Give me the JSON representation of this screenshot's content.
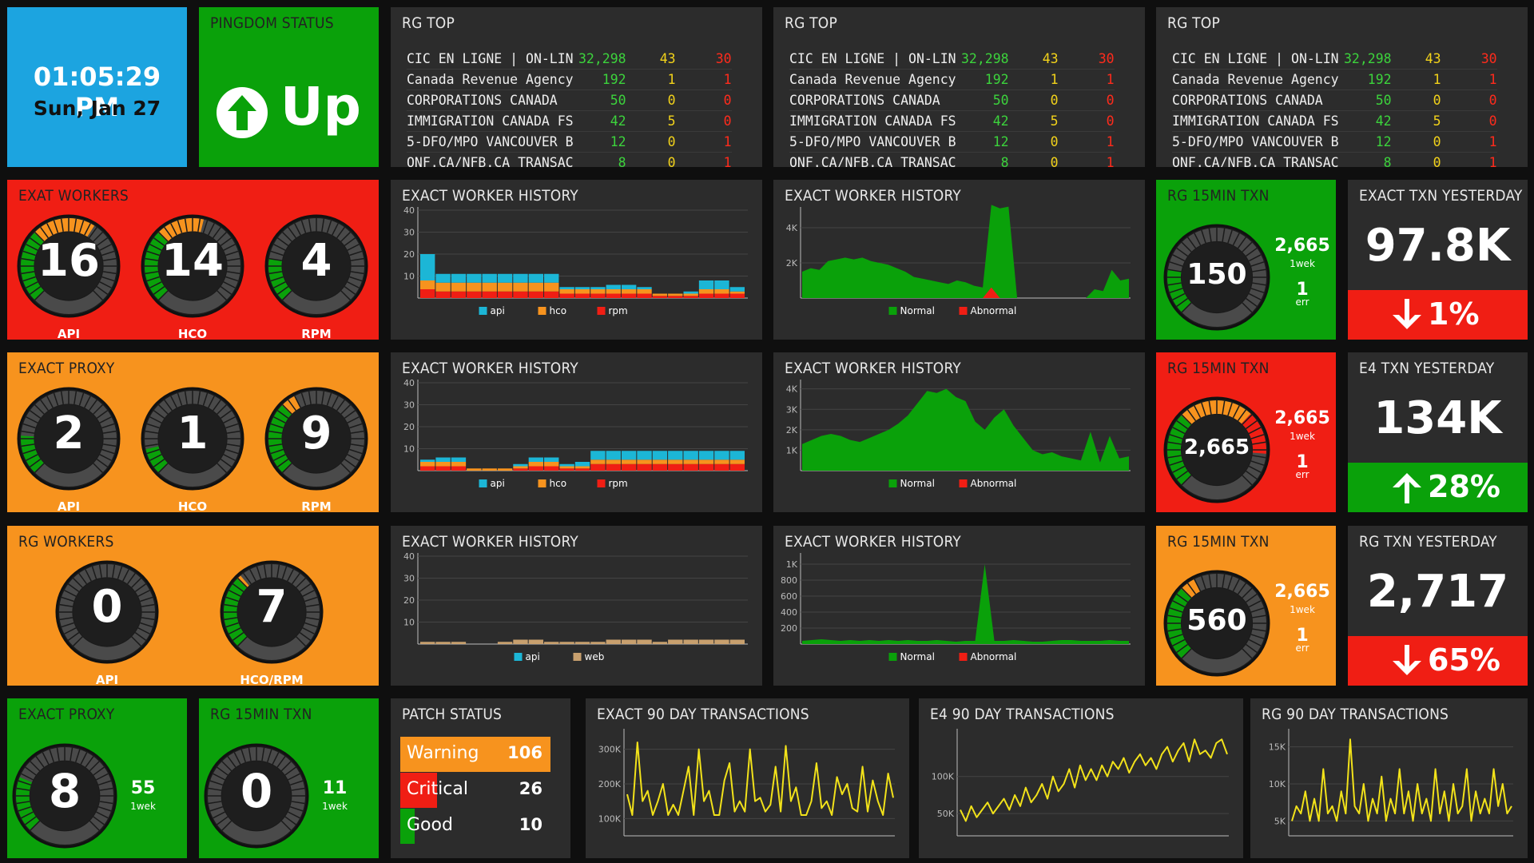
{
  "clock": {
    "time": "01:05:29 PM",
    "date": "Sun, Jan 27"
  },
  "pingdom": {
    "title": "PINGDOM STATUS",
    "status": "Up",
    "icon": "arrow-up-circle-icon"
  },
  "rg_top": {
    "title": "RG TOP",
    "rows": [
      {
        "name": "CIC EN LIGNE | ON-LIN",
        "a": "32,298",
        "b": "43",
        "c": "30"
      },
      {
        "name": "Canada Revenue Agency",
        "a": "192",
        "b": "1",
        "c": "1"
      },
      {
        "name": "CORPORATIONS CANADA",
        "a": "50",
        "b": "0",
        "c": "0"
      },
      {
        "name": "IMMIGRATION CANADA FS",
        "a": "42",
        "b": "5",
        "c": "0"
      },
      {
        "name": "5-DFO/MPO VANCOUVER B",
        "a": "12",
        "b": "0",
        "c": "1"
      },
      {
        "name": "ONF.CA/NFB.CA TRANSAC",
        "a": "8",
        "b": "0",
        "c": "1"
      }
    ]
  },
  "exat_workers": {
    "title": "EXAT WORKERS",
    "gauges": [
      {
        "value": "16",
        "label": "API",
        "level": 0.62
      },
      {
        "value": "14",
        "label": "HCO",
        "level": 0.55
      },
      {
        "value": "4",
        "label": "RPM",
        "level": 0.2
      }
    ]
  },
  "exact_proxy": {
    "title": "EXACT PROXY",
    "gauges": [
      {
        "value": "2",
        "label": "API",
        "level": 0.18
      },
      {
        "value": "1",
        "label": "HCO",
        "level": 0.12
      },
      {
        "value": "9",
        "label": "RPM",
        "level": 0.4
      }
    ]
  },
  "rg_workers": {
    "title": "RG WORKERS",
    "gauges": [
      {
        "value": "0",
        "label": "API",
        "level": 0
      },
      {
        "value": "7",
        "label": "HCO/RPM",
        "level": 0.35
      }
    ]
  },
  "exact_proxy2": {
    "title": "EXACT PROXY",
    "value": "8",
    "side": "55",
    "side_caption": "1wek",
    "level": 0.25
  },
  "rg15_small": {
    "title": "RG 15MIN TXN",
    "value": "0",
    "side": "11",
    "side_caption": "1wek",
    "level": 0
  },
  "rg15": [
    {
      "title": "RG 15MIN TXN",
      "value": "150",
      "wk": "2,665",
      "wk_caption": "1wek",
      "err": "1",
      "err_caption": "err",
      "level": 0.2
    },
    {
      "title": "RG 15MIN TXN",
      "value": "2,665",
      "wk": "2,665",
      "wk_caption": "1wek",
      "err": "1",
      "err_caption": "err",
      "level": 0.85
    },
    {
      "title": "RG 15MIN TXN",
      "value": "560",
      "wk": "2,665",
      "wk_caption": "1wek",
      "err": "1",
      "err_caption": "err",
      "level": 0.4
    }
  ],
  "yesterday": [
    {
      "title": "EXACT TXN YESTERDAY",
      "value": "97.8K",
      "delta": "1%",
      "direction": "down",
      "color": "#f01e14"
    },
    {
      "title": "E4 TXN YESTERDAY",
      "value": "134K",
      "delta": "28%",
      "direction": "up",
      "color": "#0aa10a"
    },
    {
      "title": "RG TXN YESTERDAY",
      "value": "2,717",
      "delta": "65%",
      "direction": "down",
      "color": "#f01e14"
    }
  ],
  "patch": {
    "title": "PATCH STATUS",
    "rows": [
      {
        "label": "Warning",
        "value": "106",
        "color": "#f7931e"
      },
      {
        "label": "Critical",
        "value": "26",
        "color": "#f01e14"
      },
      {
        "label": "Good",
        "value": "10",
        "color": "#0aa10a"
      }
    ]
  },
  "colors": {
    "green": "#0aa10a",
    "red": "#f01e14",
    "orange": "#f7931e",
    "blue": "#1ca4e0",
    "tile": "#2c2c2c",
    "line": "#f2e21a",
    "api": "#1cb6d6",
    "hco": "#f7931e",
    "rpm": "#f01e14",
    "web": "#c8a06e"
  },
  "chart_data": [
    {
      "type": "bar",
      "title": "EXACT WORKER HISTORY",
      "ylim": [
        0,
        40
      ],
      "yticks": [
        "10",
        "20",
        "30",
        "40"
      ],
      "series": [
        {
          "name": "api",
          "values": [
            12,
            4,
            4,
            4,
            4,
            4,
            4,
            4,
            4,
            1,
            1,
            1,
            2,
            2,
            1,
            0,
            0,
            1,
            4,
            4,
            2
          ]
        },
        {
          "name": "hco",
          "values": [
            4,
            4,
            4,
            4,
            4,
            4,
            4,
            4,
            4,
            2,
            2,
            2,
            2,
            2,
            2,
            1,
            1,
            1,
            2,
            2,
            1
          ]
        },
        {
          "name": "rpm",
          "values": [
            4,
            3,
            3,
            3,
            3,
            3,
            3,
            3,
            3,
            2,
            2,
            2,
            2,
            2,
            2,
            1,
            1,
            1,
            2,
            2,
            2
          ]
        }
      ]
    },
    {
      "type": "area",
      "title": "EXACT WORKER HISTORY",
      "ylim": [
        0,
        5000
      ],
      "yticks": [
        "2K",
        "4K"
      ],
      "series": [
        {
          "name": "Normal",
          "values": [
            1500,
            1700,
            1600,
            2100,
            2200,
            2300,
            2200,
            2300,
            2100,
            2000,
            1900,
            1700,
            1500,
            1200,
            1100,
            1000,
            900,
            800,
            1000,
            900,
            700,
            600,
            5300,
            5100,
            5200,
            0,
            0,
            0,
            0,
            0,
            0,
            0,
            0,
            0,
            500,
            400,
            1600,
            1000,
            1100
          ]
        },
        {
          "name": "Abnormal",
          "values": [
            0,
            0,
            0,
            0,
            0,
            0,
            0,
            0,
            0,
            0,
            0,
            0,
            0,
            0,
            0,
            0,
            0,
            0,
            0,
            0,
            0,
            0,
            600,
            0,
            0,
            0,
            0,
            0,
            0,
            0,
            0,
            0,
            0,
            0,
            0,
            0,
            0,
            0,
            0
          ]
        }
      ]
    },
    {
      "type": "bar",
      "title": "EXACT WORKER HISTORY",
      "ylim": [
        0,
        40
      ],
      "yticks": [
        "10",
        "20",
        "30",
        "40"
      ],
      "series": [
        {
          "name": "api",
          "values": [
            1,
            2,
            2,
            0,
            0,
            0,
            1,
            2,
            2,
            1,
            2,
            4,
            4,
            4,
            4,
            4,
            4,
            4,
            4,
            4,
            4
          ]
        },
        {
          "name": "hco",
          "values": [
            2,
            2,
            2,
            1,
            1,
            1,
            1,
            2,
            2,
            1,
            1,
            2,
            2,
            2,
            2,
            2,
            2,
            2,
            2,
            2,
            2
          ]
        },
        {
          "name": "rpm",
          "values": [
            2,
            2,
            2,
            0,
            0,
            0,
            1,
            2,
            2,
            1,
            1,
            3,
            3,
            3,
            3,
            3,
            3,
            3,
            3,
            3,
            3
          ]
        }
      ]
    },
    {
      "type": "area",
      "title": "EXACT WORKER HISTORY",
      "ylim": [
        0,
        4300
      ],
      "yticks": [
        "1K",
        "2K",
        "3K",
        "4K"
      ],
      "series": [
        {
          "name": "Normal",
          "values": [
            1300,
            1500,
            1700,
            1800,
            1700,
            1500,
            1400,
            1600,
            1800,
            2000,
            2300,
            2700,
            3300,
            3900,
            3800,
            4000,
            3600,
            3400,
            2400,
            2000,
            2600,
            3000,
            2200,
            1600,
            1000,
            800,
            900,
            700,
            600,
            500,
            1900,
            400,
            1700,
            600,
            700
          ]
        },
        {
          "name": "Abnormal",
          "values": [
            0,
            0,
            0,
            0,
            0,
            0,
            0,
            0,
            0,
            0,
            0,
            0,
            0,
            0,
            0,
            0,
            0,
            0,
            0,
            0,
            0,
            0,
            0,
            0,
            0,
            0,
            0,
            0,
            0,
            0,
            0,
            0,
            0,
            0,
            0
          ]
        }
      ]
    },
    {
      "type": "bar",
      "title": "EXACT WORKER HISTORY",
      "ylim": [
        0,
        40
      ],
      "yticks": [
        "10",
        "20",
        "30",
        "40"
      ],
      "series": [
        {
          "name": "api",
          "values": [
            0,
            0,
            0,
            0,
            0,
            0,
            0,
            0,
            0,
            0,
            0,
            0,
            0,
            0,
            0,
            0,
            0,
            0,
            0,
            0,
            0
          ]
        },
        {
          "name": "web",
          "values": [
            1,
            1,
            1,
            0,
            0,
            1,
            2,
            2,
            1,
            1,
            1,
            1,
            2,
            2,
            2,
            1,
            2,
            2,
            2,
            2,
            2
          ]
        }
      ]
    },
    {
      "type": "area",
      "title": "EXACT WORKER HISTORY",
      "ylim": [
        0,
        1100
      ],
      "yticks": [
        "200",
        "400",
        "600",
        "800",
        "1K"
      ],
      "series": [
        {
          "name": "Normal",
          "values": [
            40,
            50,
            60,
            50,
            40,
            50,
            40,
            50,
            40,
            50,
            40,
            50,
            40,
            40,
            50,
            40,
            30,
            40,
            40,
            1000,
            40,
            40,
            50,
            40,
            30,
            30,
            40,
            50,
            50,
            40,
            40,
            40,
            50,
            40,
            40
          ]
        },
        {
          "name": "Abnormal",
          "values": [
            0,
            0,
            0,
            0,
            0,
            0,
            0,
            0,
            0,
            0,
            0,
            0,
            0,
            0,
            0,
            0,
            0,
            0,
            0,
            0,
            0,
            0,
            0,
            0,
            0,
            0,
            0,
            0,
            0,
            0,
            0,
            0,
            0,
            0,
            0
          ]
        }
      ]
    },
    {
      "type": "line",
      "title": "EXACT 90 DAY TRANSACTIONS",
      "ylim": [
        50000,
        350000
      ],
      "yticks": [
        "100K",
        "200K",
        "300K"
      ],
      "series": [
        {
          "name": "",
          "values": [
            170000,
            110000,
            320000,
            150000,
            180000,
            110000,
            150000,
            200000,
            110000,
            140000,
            110000,
            180000,
            250000,
            110000,
            300000,
            150000,
            180000,
            110000,
            110000,
            210000,
            260000,
            120000,
            150000,
            120000,
            300000,
            150000,
            160000,
            120000,
            140000,
            250000,
            120000,
            310000,
            150000,
            190000,
            110000,
            110000,
            150000,
            260000,
            130000,
            150000,
            110000,
            220000,
            170000,
            200000,
            130000,
            120000,
            250000,
            120000,
            210000,
            150000,
            110000,
            230000,
            160000
          ]
        }
      ]
    },
    {
      "type": "line",
      "title": "E4 90 DAY TRANSACTIONS",
      "ylim": [
        20000,
        160000
      ],
      "yticks": [
        "50K",
        "100K"
      ],
      "series": [
        {
          "name": "",
          "values": [
            55000,
            40000,
            60000,
            45000,
            55000,
            65000,
            50000,
            60000,
            70000,
            55000,
            75000,
            60000,
            85000,
            65000,
            75000,
            90000,
            70000,
            100000,
            80000,
            90000,
            110000,
            85000,
            115000,
            95000,
            110000,
            95000,
            115000,
            100000,
            120000,
            110000,
            125000,
            105000,
            120000,
            130000,
            115000,
            125000,
            110000,
            130000,
            140000,
            120000,
            135000,
            145000,
            120000,
            150000,
            130000,
            135000,
            125000,
            145000,
            150000,
            130000
          ]
        }
      ]
    },
    {
      "type": "line",
      "title": "RG 90 DAY TRANSACTIONS",
      "ylim": [
        3000,
        17000
      ],
      "yticks": [
        "5K",
        "10K",
        "15K"
      ],
      "series": [
        {
          "name": "",
          "values": [
            5000,
            7000,
            6000,
            9000,
            5000,
            8000,
            5000,
            12000,
            6000,
            7000,
            5000,
            9000,
            6000,
            16000,
            7000,
            6000,
            10000,
            5000,
            8000,
            6000,
            11000,
            5000,
            8000,
            6000,
            12000,
            6000,
            9000,
            5000,
            10000,
            6000,
            8000,
            5000,
            12000,
            6000,
            9000,
            5000,
            10000,
            6000,
            7000,
            12000,
            5000,
            9000,
            6000,
            8000,
            6000,
            12000,
            7000,
            10000,
            6000,
            7000
          ]
        }
      ]
    }
  ],
  "legends": {
    "workers": [
      {
        "label": "api",
        "key": "api"
      },
      {
        "label": "hco",
        "key": "hco"
      },
      {
        "label": "rpm",
        "key": "rpm"
      }
    ],
    "workers_web": [
      {
        "label": "api",
        "key": "api"
      },
      {
        "label": "web",
        "key": "web"
      }
    ],
    "health": [
      {
        "label": "Normal",
        "key": "green"
      },
      {
        "label": "Abnormal",
        "key": "red"
      }
    ]
  }
}
